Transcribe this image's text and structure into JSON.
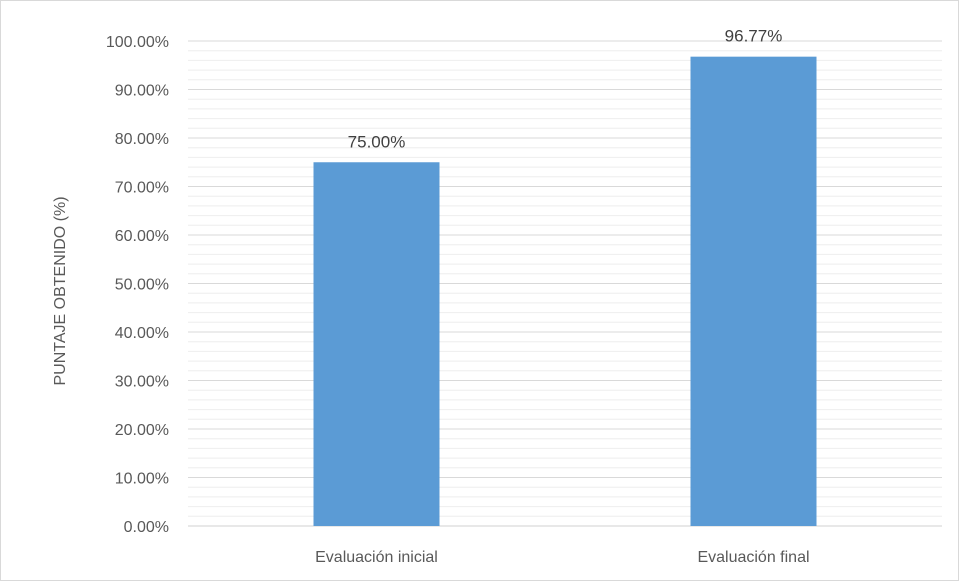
{
  "chart_data": {
    "type": "bar",
    "title": "",
    "xlabel": "",
    "ylabel": "PUNTAJE OBTENIDO (%)",
    "ylim": [
      0,
      100
    ],
    "y_ticks": [
      "0.00%",
      "10.00%",
      "20.00%",
      "30.00%",
      "40.00%",
      "50.00%",
      "60.00%",
      "70.00%",
      "80.00%",
      "90.00%",
      "100.00%"
    ],
    "categories": [
      "Evaluación inicial",
      "Evaluación final"
    ],
    "values": [
      75.0,
      96.77
    ],
    "data_labels": [
      "75.00%",
      "96.77%"
    ],
    "grid": true,
    "legend": "none",
    "bar_color": "#5b9bd5",
    "grid_color": "#d9d9d9"
  }
}
